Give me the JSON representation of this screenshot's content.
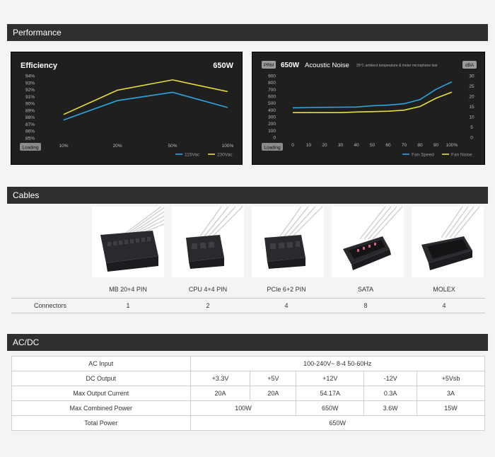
{
  "sections": {
    "performance": "Performance",
    "cables": "Cables",
    "acdc": "AC/DC"
  },
  "efficiency": {
    "title": "Efficiency",
    "wattage": "650W",
    "badge": "Loading",
    "y_ticks": [
      "94%",
      "93%",
      "92%",
      "91%",
      "90%",
      "89%",
      "88%",
      "87%",
      "86%",
      "85%"
    ],
    "x_ticks": [
      "10%",
      "20%",
      "50%",
      "100%"
    ],
    "legend": [
      "115Vac",
      "230Vac"
    ]
  },
  "acoustic": {
    "tag": "PRM",
    "title_bold": "650W",
    "title_rest": "Acoustic Noise",
    "note": "25°C ambient temperature & meter microphone test",
    "unit_badge": "dBA",
    "badge": "Loading",
    "y_left_ticks": [
      "900",
      "800",
      "700",
      "600",
      "500",
      "400",
      "300",
      "200",
      "100",
      "0"
    ],
    "y_right_ticks": [
      "30",
      "25",
      "20",
      "15",
      "10",
      "5",
      "0"
    ],
    "x_ticks": [
      "0",
      "10",
      "20",
      "30",
      "40",
      "50",
      "60",
      "70",
      "80",
      "90",
      "100%"
    ],
    "legend": [
      "Fan Speed",
      "Fan Noise"
    ]
  },
  "chart_data": [
    {
      "type": "line",
      "title": "Efficiency",
      "categories": [
        "10%",
        "20%",
        "50%",
        "100%"
      ],
      "series": [
        {
          "name": "115Vac",
          "color": "#2aa7e0",
          "values": [
            87.6,
            90.4,
            91.6,
            89.4
          ]
        },
        {
          "name": "230Vac",
          "color": "#e8e03a",
          "values": [
            88.4,
            91.9,
            93.4,
            91.7
          ]
        }
      ],
      "ylim": [
        85,
        94
      ],
      "legend": "bottom-right"
    },
    {
      "type": "line",
      "title": "650W Acoustic Noise",
      "x": [
        0,
        10,
        20,
        30,
        40,
        50,
        60,
        70,
        80,
        90,
        100
      ],
      "series": [
        {
          "name": "Fan Speed",
          "axis": "left",
          "color": "#2aa7e0",
          "values": [
            430,
            435,
            438,
            440,
            442,
            460,
            470,
            490,
            550,
            700,
            810
          ]
        },
        {
          "name": "Fan Noise",
          "axis": "right",
          "color": "#e8e03a",
          "values": [
            12,
            12,
            12,
            12,
            12.3,
            12.5,
            12.7,
            13.2,
            15,
            19,
            22
          ]
        }
      ],
      "ylim_left": [
        0,
        900
      ],
      "ylim_right": [
        0,
        30
      ],
      "legend": "bottom-right"
    }
  ],
  "connectors": {
    "row_label": "Connectors",
    "items": [
      {
        "name": "MB 20+4 PIN",
        "count": "1"
      },
      {
        "name": "CPU 4+4 PIN",
        "count": "2"
      },
      {
        "name": "PCIe 6+2 PIN",
        "count": "4"
      },
      {
        "name": "SATA",
        "count": "8"
      },
      {
        "name": "MOLEX",
        "count": "4"
      }
    ]
  },
  "acdc_table": {
    "ac_input_label": "AC Input",
    "ac_input_value": "100-240V~  8-4  50-60Hz",
    "dc_output_label": "DC Output",
    "rails": [
      "+3.3V",
      "+5V",
      "+12V",
      "-12V",
      "+5Vsb"
    ],
    "max_output_label": "Max Output Current",
    "currents": [
      "20A",
      "20A",
      "54.17A",
      "0.3A",
      "3A"
    ],
    "combined_label": "Max Combined Power",
    "combined_low": "100W",
    "combined_12v": "650W",
    "combined_neg12": "3.6W",
    "combined_5vsb": "15W",
    "total_label": "Total Power",
    "total_value": "650W"
  }
}
